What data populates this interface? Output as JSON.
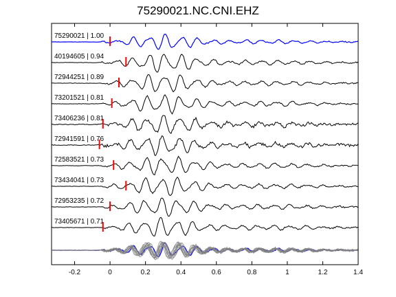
{
  "title": "75290021.NC.CNI.EHZ",
  "chart_data": {
    "type": "line",
    "title": "75290021.NC.CNI.EHZ",
    "xlabel": "",
    "ylabel": "",
    "xlim": [
      -0.33,
      1.4
    ],
    "xticks": [
      -0.2,
      0,
      0.2,
      0.4,
      0.6,
      0.8,
      1,
      1.2,
      1.4
    ],
    "xtick_labels": [
      "-0.2",
      "0",
      "0.2",
      "0.4",
      "0.6",
      "0.8",
      "1",
      "1.2",
      "1.4"
    ],
    "grid": false,
    "colors": {
      "reference": "#0000ff",
      "trace": "#000000",
      "pick": "#ff0000",
      "stack": "#808080"
    },
    "series": [
      {
        "name": "75290021 | 1.00",
        "pick_time": 0.0,
        "reference": true
      },
      {
        "name": "40194605 | 0.94",
        "pick_time": 0.09
      },
      {
        "name": "72944251 | 0.89",
        "pick_time": 0.05
      },
      {
        "name": "73201521 | 0.81",
        "pick_time": 0.01
      },
      {
        "name": "73406236 | 0.81",
        "pick_time": -0.04
      },
      {
        "name": "72941591 | 0.76",
        "pick_time": -0.06
      },
      {
        "name": "72583521 | 0.73",
        "pick_time": 0.02
      },
      {
        "name": "73434041 | 0.73",
        "pick_time": 0.09
      },
      {
        "name": "72953235 | 0.72",
        "pick_time": 0.0
      },
      {
        "name": "73405671 | 0.71",
        "pick_time": -0.04
      }
    ],
    "stack": {
      "show": true
    }
  }
}
